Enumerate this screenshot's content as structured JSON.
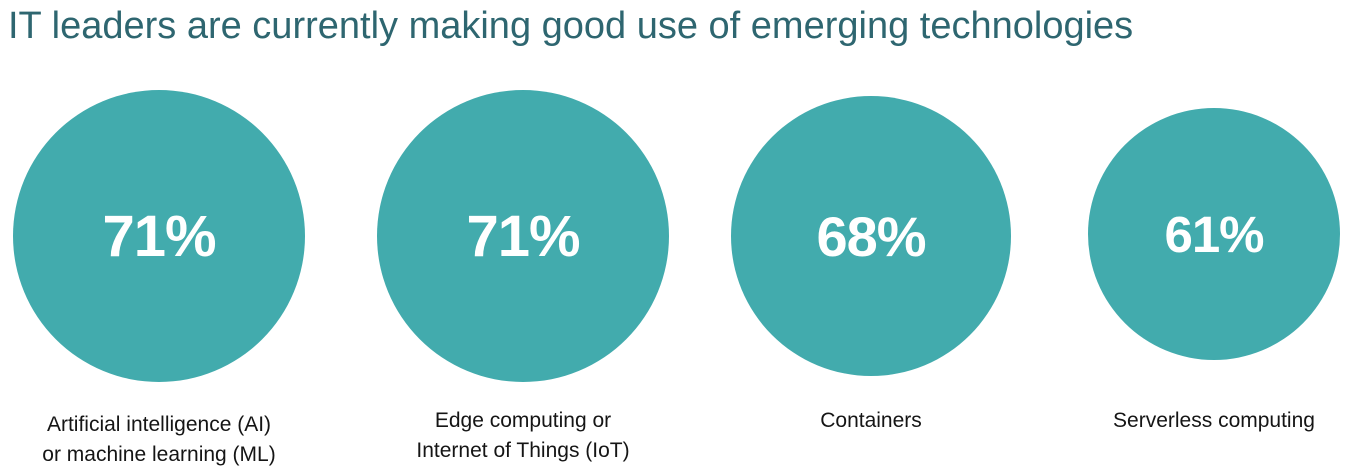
{
  "title": "IT leaders are currently making good use of emerging technologies",
  "colors": {
    "circle": "#42abad",
    "title": "#2e6670",
    "value_text": "#ffffff",
    "label_text": "#151515"
  },
  "chart_data": {
    "type": "bubble-stat",
    "title": "IT leaders are currently making good use of emerging technologies",
    "unit": "%",
    "items": [
      {
        "label": "Artificial intelligence (AI)\nor machine learning (ML)",
        "value": 71,
        "display": "71%"
      },
      {
        "label": "Edge computing or\nInternet of Things (IoT)",
        "value": 71,
        "display": "71%"
      },
      {
        "label": "Containers",
        "value": 68,
        "display": "68%"
      },
      {
        "label": "Serverless computing",
        "value": 61,
        "display": "61%"
      }
    ]
  }
}
